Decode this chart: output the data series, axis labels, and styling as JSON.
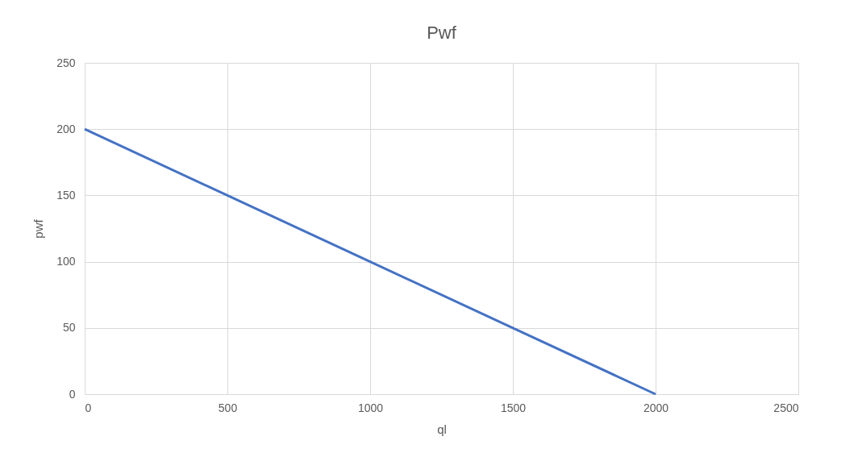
{
  "chart_data": {
    "type": "line",
    "title": "Pwf",
    "xlabel": "ql",
    "ylabel": "pwf",
    "x": [
      0,
      500,
      1000,
      1500,
      2000
    ],
    "series": [
      {
        "color": "#4472c4",
        "values": [
          200,
          150,
          100,
          50,
          0
        ]
      }
    ],
    "xlim": [
      0,
      2500
    ],
    "xticks": [
      0,
      500,
      1000,
      1500,
      2000,
      2500
    ],
    "ylim": [
      0,
      250
    ],
    "yticks": [
      0,
      50,
      100,
      150,
      200,
      250
    ],
    "grid": true,
    "legend": false,
    "marker": "none",
    "line_style": "solid"
  }
}
